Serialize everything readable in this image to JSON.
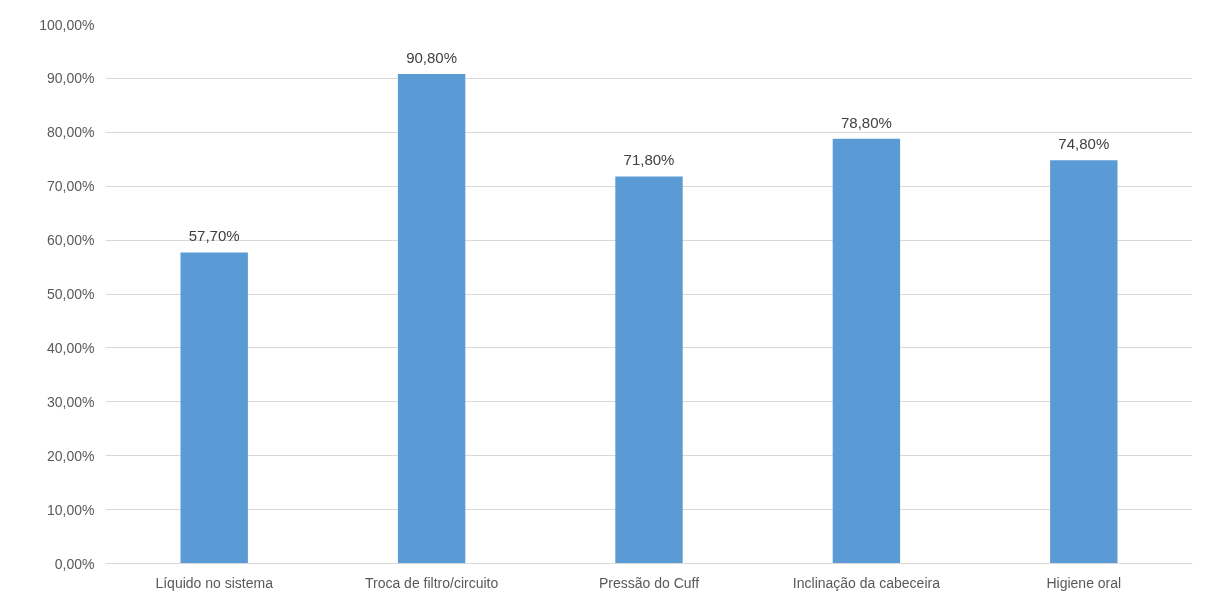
{
  "chart_data": {
    "type": "bar",
    "categories": [
      "Líquido no sistema",
      "Troca de filtro/circuito",
      "Pressão do Cuff",
      "Inclinação da cabeceira",
      "Higiene oral"
    ],
    "values": [
      57.7,
      90.8,
      71.8,
      78.8,
      74.8
    ],
    "value_labels": [
      "57,70%",
      "90,80%",
      "71,80%",
      "78,80%",
      "74,80%"
    ],
    "color": "#5b9bd5",
    "ylim": [
      0,
      100
    ],
    "yticks": [
      {
        "value": 0,
        "label": "0,00%"
      },
      {
        "value": 10,
        "label": "10,00%"
      },
      {
        "value": 20,
        "label": "20,00%"
      },
      {
        "value": 30,
        "label": "30,00%"
      },
      {
        "value": 40,
        "label": "40,00%"
      },
      {
        "value": 50,
        "label": "50,00%"
      },
      {
        "value": 60,
        "label": "60,00%"
      },
      {
        "value": 70,
        "label": "70,00%"
      },
      {
        "value": 80,
        "label": "80,00%"
      },
      {
        "value": 90,
        "label": "90,00%"
      },
      {
        "value": 100,
        "label": "100,00%"
      }
    ],
    "grid": "y"
  }
}
